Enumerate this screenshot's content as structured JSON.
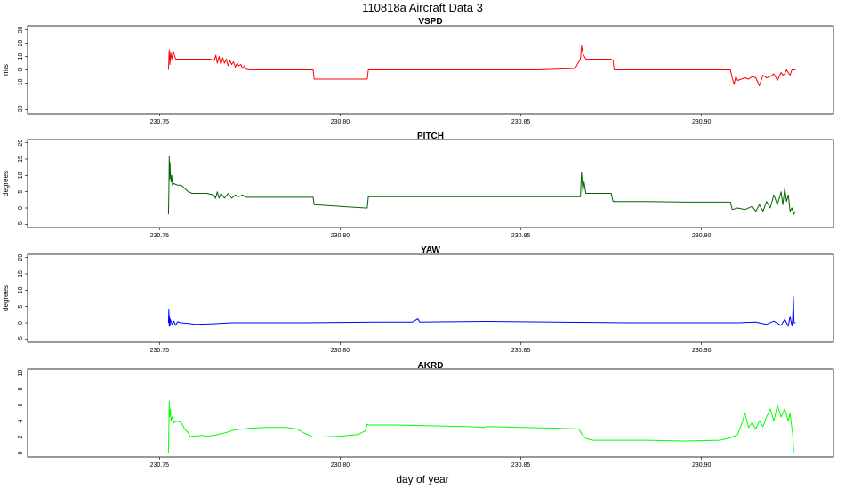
{
  "figure": {
    "title": "110818a   Aircraft Data 3",
    "xlabel": "day of year"
  },
  "chart_data": [
    {
      "type": "line",
      "title": "VSPD",
      "ylabel": "m/s",
      "color": "#ff0000",
      "xlim": [
        230.7135,
        230.9365
      ],
      "xticks": [
        "230.75",
        "230.80",
        "230.85",
        "230.90"
      ],
      "ylim": [
        -33,
        33
      ],
      "yticks": [
        "30",
        "20",
        "10",
        "0",
        "-10",
        "-30"
      ],
      "yticks_values": [
        30,
        20,
        10,
        0,
        -10,
        -30
      ],
      "series": [
        {
          "x": [
            230.7525,
            230.7527,
            230.7529,
            230.7531,
            230.7534,
            230.7538,
            230.7545,
            230.7555,
            230.757,
            230.76,
            230.762,
            230.764,
            230.7652,
            230.7656,
            230.766,
            230.7665,
            230.767,
            230.7675,
            230.768,
            230.7685,
            230.769,
            230.7695,
            230.77,
            230.7705,
            230.771,
            230.7715,
            230.772,
            230.7725,
            230.773,
            230.7735,
            230.774,
            230.775,
            230.78,
            230.785,
            230.79,
            230.7925,
            230.7928,
            230.8,
            230.807,
            230.8075,
            230.8078,
            230.815,
            230.825,
            230.835,
            230.845,
            230.855,
            230.865,
            230.8665,
            230.8668,
            230.8672,
            230.8676,
            230.868,
            230.869,
            230.8695,
            230.87,
            230.875,
            230.8755,
            230.8758,
            230.885,
            230.895,
            230.905,
            230.908,
            230.9085,
            230.909,
            230.9095,
            230.91,
            230.911,
            230.912,
            230.913,
            230.914,
            230.915,
            230.916,
            230.917,
            230.918,
            230.919,
            230.92,
            230.921,
            230.922,
            230.9225,
            230.923,
            230.9235,
            230.924,
            230.9245,
            230.925,
            230.926
          ],
          "y": [
            0,
            15,
            4,
            13,
            8,
            14,
            8,
            8,
            8,
            8,
            8,
            8,
            7,
            11,
            5,
            10,
            4,
            9,
            5,
            8,
            3,
            7,
            4,
            6,
            2,
            5,
            3,
            4,
            1,
            3,
            0.5,
            0,
            0,
            0,
            0,
            0,
            -7,
            -7,
            -7,
            -7,
            0,
            0,
            0,
            0,
            0,
            0,
            1,
            8,
            18,
            12,
            10,
            8,
            8,
            8,
            8,
            8,
            7,
            0,
            0,
            0,
            0,
            0,
            -6,
            -11,
            -5,
            -8,
            -7,
            -6,
            -7,
            -5,
            -6,
            -12,
            -4,
            -6,
            -5,
            -3,
            -8,
            -2,
            -4,
            -3,
            0,
            -2,
            -4,
            0,
            0
          ]
        }
      ]
    },
    {
      "type": "line",
      "title": "PITCH",
      "ylabel": "degrees",
      "color": "#006400",
      "xlim": [
        230.7135,
        230.9365
      ],
      "xticks": [
        "230.75",
        "230.80",
        "230.85",
        "230.90"
      ],
      "ylim": [
        -6,
        21
      ],
      "yticks": [
        "20",
        "15",
        "10",
        "5",
        "0",
        "-5"
      ],
      "yticks_values": [
        20,
        15,
        10,
        5,
        0,
        -5
      ],
      "series": [
        {
          "x": [
            230.7525,
            230.7526,
            230.7527,
            230.7528,
            230.7529,
            230.753,
            230.7532,
            230.7534,
            230.7536,
            230.754,
            230.755,
            230.756,
            230.757,
            230.758,
            230.759,
            230.76,
            230.763,
            230.765,
            230.7655,
            230.766,
            230.7665,
            230.767,
            230.768,
            230.769,
            230.77,
            230.771,
            230.772,
            230.773,
            230.774,
            230.775,
            230.785,
            230.7925,
            230.7928,
            230.8,
            230.807,
            230.8075,
            230.8078,
            230.815,
            230.83,
            230.845,
            230.86,
            230.866,
            230.8665,
            230.8668,
            230.8672,
            230.8675,
            230.868,
            230.87,
            230.875,
            230.8755,
            230.885,
            230.895,
            230.905,
            230.908,
            230.9085,
            230.91,
            230.912,
            230.914,
            230.915,
            230.916,
            230.917,
            230.918,
            230.919,
            230.92,
            230.921,
            230.922,
            230.9225,
            230.923,
            230.9235,
            230.924,
            230.9245,
            230.925,
            230.9255,
            230.926
          ],
          "y": [
            -2,
            5,
            16,
            9,
            14,
            11,
            8,
            10,
            7,
            7.5,
            7,
            7,
            6,
            5,
            4.5,
            4.5,
            4.5,
            4,
            3,
            5,
            3,
            4.5,
            3,
            4.5,
            3,
            4,
            3.5,
            4,
            3.3,
            3.3,
            3.3,
            3.3,
            1,
            0.5,
            0,
            0,
            3.5,
            3.5,
            3.5,
            3.5,
            3.5,
            3.5,
            3.5,
            11,
            5,
            8,
            4.5,
            4.5,
            4.5,
            2,
            2,
            1.8,
            1.8,
            1.8,
            -0.5,
            0,
            -0.5,
            0.5,
            -1,
            1,
            -1,
            2,
            0,
            4,
            1,
            5,
            1,
            6,
            2,
            4,
            -1,
            0,
            -2,
            -1
          ]
        }
      ]
    },
    {
      "type": "line",
      "title": "YAW",
      "ylabel": "degrees",
      "color": "#0000ff",
      "xlim": [
        230.7135,
        230.9365
      ],
      "xticks": [
        "230.75",
        "230.80",
        "230.85",
        "230.90"
      ],
      "ylim": [
        -6,
        21
      ],
      "yticks": [
        "20",
        "15",
        "10",
        "5",
        "0",
        "-5"
      ],
      "yticks_values": [
        20,
        15,
        10,
        5,
        0,
        -5
      ],
      "series": [
        {
          "x": [
            230.7525,
            230.7526,
            230.7527,
            230.7528,
            230.7529,
            230.753,
            230.7535,
            230.754,
            230.7545,
            230.755,
            230.756,
            230.758,
            230.76,
            230.765,
            230.77,
            230.78,
            230.79,
            230.8,
            230.81,
            230.82,
            230.8215,
            230.822,
            230.83,
            230.84,
            230.85,
            230.86,
            230.87,
            230.88,
            230.89,
            230.9,
            230.91,
            230.915,
            230.918,
            230.92,
            230.922,
            230.923,
            230.924,
            230.9245,
            230.925,
            230.9252,
            230.9254,
            230.9256,
            230.926
          ],
          "y": [
            0,
            4,
            -1,
            2,
            -1,
            1,
            -0.5,
            0.5,
            -0.8,
            0.3,
            0,
            -0.2,
            -0.5,
            -0.3,
            0,
            0,
            0,
            0.1,
            0.2,
            0.2,
            1.2,
            0.2,
            0.3,
            0.4,
            0.3,
            0.2,
            0.1,
            0,
            0,
            0,
            0,
            0.2,
            -0.5,
            0.5,
            -0.8,
            1,
            -1,
            2,
            -1,
            1,
            8,
            0,
            0
          ]
        }
      ]
    },
    {
      "type": "line",
      "title": "AKRD",
      "ylabel": "",
      "color": "#00ff00",
      "xlim": [
        230.7135,
        230.9365
      ],
      "xticks": [
        "230.75",
        "230.80",
        "230.85",
        "230.90"
      ],
      "ylim": [
        -0.5,
        10.5
      ],
      "yticks": [
        "10",
        "8",
        "6",
        "4",
        "2",
        "0"
      ],
      "yticks_values": [
        10,
        8,
        6,
        4,
        2,
        0
      ],
      "series": [
        {
          "x": [
            230.7525,
            230.7526,
            230.7527,
            230.7528,
            230.753,
            230.7532,
            230.7535,
            230.754,
            230.755,
            230.756,
            230.757,
            230.758,
            230.7585,
            230.759,
            230.762,
            230.7625,
            230.765,
            230.768,
            230.771,
            230.775,
            230.78,
            230.785,
            230.788,
            230.79,
            230.7925,
            230.795,
            230.8,
            230.805,
            230.807,
            230.8075,
            230.808,
            230.815,
            230.825,
            230.835,
            230.84,
            230.8405,
            230.85,
            230.86,
            230.866,
            230.867,
            230.868,
            230.87,
            230.875,
            230.885,
            230.895,
            230.905,
            230.908,
            230.9085,
            230.91,
            230.911,
            230.912,
            230.913,
            230.914,
            230.915,
            230.916,
            230.917,
            230.918,
            230.919,
            230.92,
            230.921,
            230.922,
            230.923,
            230.924,
            230.9245,
            230.925,
            230.9252,
            230.9255,
            230.926
          ],
          "y": [
            0,
            3,
            6.5,
            4.5,
            5.5,
            4,
            4.5,
            3.8,
            4,
            3.8,
            3,
            2.5,
            2,
            2.1,
            2.2,
            2.1,
            2.2,
            2.5,
            2.9,
            3.1,
            3.2,
            3.2,
            3,
            2.5,
            2,
            2,
            2.1,
            2.3,
            2.8,
            3.6,
            3.5,
            3.5,
            3.4,
            3.3,
            3.2,
            3.3,
            3.2,
            3.1,
            3,
            2.3,
            1.8,
            1.6,
            1.6,
            1.6,
            1.5,
            1.6,
            1.9,
            2,
            2.3,
            3.5,
            5,
            3.2,
            3.8,
            3,
            4,
            3.3,
            4.5,
            5.5,
            4,
            6,
            4.5,
            5.5,
            4,
            5,
            3,
            2.5,
            0,
            0
          ]
        }
      ]
    }
  ]
}
